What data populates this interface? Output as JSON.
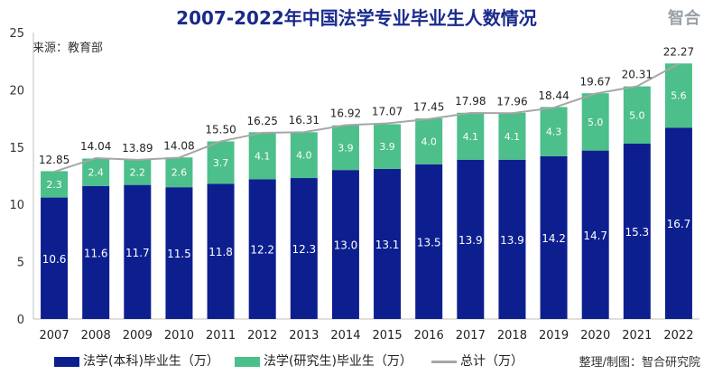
{
  "title": "2007-2022年中国法学专业毕业生人数情况",
  "logo_text": "智合",
  "source_note": "来源：教育部",
  "credit": "整理/制图：智合研究院",
  "colors": {
    "bachelor": "#0d1f8f",
    "graduate": "#4cbf8a",
    "total": "#a6a6a6",
    "title": "#1a2a8c"
  },
  "chart_data": {
    "type": "bar",
    "stacked": true,
    "categories": [
      "2007",
      "2008",
      "2009",
      "2010",
      "2011",
      "2012",
      "2013",
      "2014",
      "2015",
      "2016",
      "2017",
      "2018",
      "2019",
      "2020",
      "2021",
      "2022"
    ],
    "series": [
      {
        "name": "法学(本科)毕业生（万）",
        "values": [
          10.6,
          11.6,
          11.7,
          11.5,
          11.8,
          12.2,
          12.3,
          13.0,
          13.1,
          13.5,
          13.9,
          13.9,
          14.2,
          14.7,
          15.3,
          16.7
        ]
      },
      {
        "name": "法学(研究生)毕业生（万）",
        "values": [
          2.3,
          2.4,
          2.2,
          2.6,
          3.7,
          4.1,
          4.0,
          3.9,
          3.9,
          4.0,
          4.1,
          4.1,
          4.3,
          5.0,
          5.0,
          5.6
        ]
      }
    ],
    "total": {
      "name": "总计（万）",
      "values": [
        12.85,
        14.04,
        13.89,
        14.08,
        15.5,
        16.25,
        16.31,
        16.92,
        17.07,
        17.45,
        17.98,
        17.96,
        18.44,
        19.67,
        20.31,
        22.27
      ],
      "labels": [
        "12.85",
        "14.04",
        "13.89",
        "14.08",
        "15.50",
        "16.25",
        "16.31",
        "16.92",
        "17.07",
        "17.45",
        "17.98",
        "17.96",
        "18.44",
        "19.67",
        "20.31",
        "22.27"
      ]
    },
    "bar_labels": {
      "bachelor": [
        "10.6",
        "11.6",
        "11.7",
        "11.5",
        "11.8",
        "12.2",
        "12.3",
        "13.0",
        "13.1",
        "13.5",
        "13.9",
        "13.9",
        "14.2",
        "14.7",
        "15.3",
        "16.7"
      ],
      "graduate": [
        "2.3",
        "2.4",
        "2.2",
        "2.6",
        "3.7",
        "4.1",
        "4.0",
        "3.9",
        "3.9",
        "4.0",
        "4.1",
        "4.1",
        "4.3",
        "5.0",
        "5.0",
        "5.6"
      ]
    },
    "yticks": [
      "0",
      "5",
      "10",
      "15",
      "20",
      "25"
    ],
    "ylim": [
      0,
      25
    ],
    "legend_position": "bottom",
    "grid": false
  }
}
